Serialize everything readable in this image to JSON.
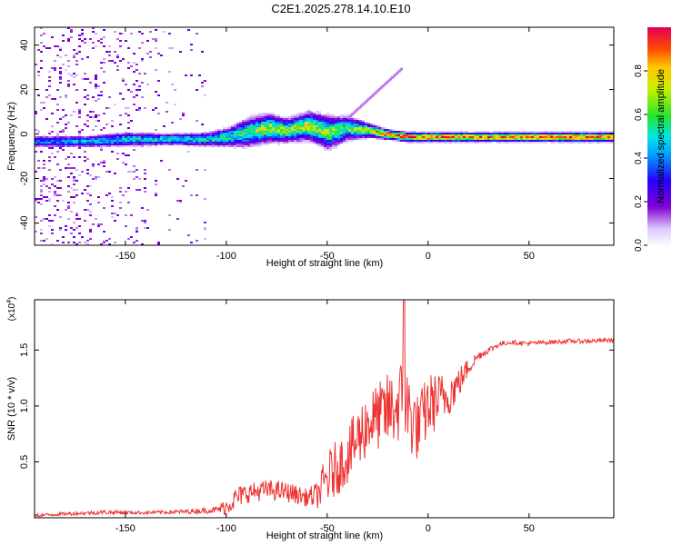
{
  "title": "C2E1.2025.278.14.10.E10",
  "chart_data": [
    {
      "type": "heatmap",
      "xlabel": "Height of straight line (km)",
      "ylabel": "Frequency (Hz)",
      "xlim": [
        -195,
        92
      ],
      "ylim": [
        -50,
        48
      ],
      "xticks": [
        -150,
        -100,
        -50,
        0,
        50
      ],
      "yticks": [
        -40,
        -20,
        0,
        20,
        40
      ],
      "colorbar": {
        "label": "Normalized spectral amplitude",
        "range": [
          0,
          1
        ],
        "ticks": [
          0.0,
          0.2,
          0.4,
          0.6,
          0.8
        ],
        "tick_labels": [
          "0.0",
          "0.2",
          "0.4",
          "0.6",
          "0.8"
        ]
      },
      "ridge": {
        "x": [
          -195,
          -170,
          -150,
          -130,
          -110,
          -100,
          -90,
          -80,
          -70,
          -60,
          -50,
          -40,
          -30,
          -20,
          -10,
          0,
          20,
          50,
          92
        ],
        "center_hz": [
          -3,
          -3,
          -2,
          -2,
          -2,
          -1,
          1,
          3,
          2,
          4,
          1,
          3,
          2,
          0,
          -1,
          -1,
          -1,
          -1,
          -1
        ],
        "half_width_hz": [
          2.5,
          2.5,
          3,
          2.5,
          3,
          4,
          6,
          6,
          5,
          6,
          7,
          5,
          3,
          2,
          2,
          2,
          2,
          2,
          2
        ],
        "peak_amplitude": [
          0.4,
          0.45,
          0.5,
          0.5,
          0.5,
          0.55,
          0.6,
          0.7,
          0.65,
          0.7,
          0.65,
          0.6,
          0.7,
          0.9,
          0.95,
          0.95,
          0.9,
          0.9,
          0.95
        ]
      }
    },
    {
      "type": "line",
      "xlabel": "Height of straight line (km)",
      "ylabel": "SNR (10 * v/v)",
      "scale_label": "(x10",
      "scale_exp": "4",
      "scale_close": ")",
      "xlim": [
        -195,
        92
      ],
      "ylim": [
        0,
        19500
      ],
      "xticks": [
        -150,
        -100,
        -50,
        0,
        50
      ],
      "yticks": [
        5000,
        10000,
        15000
      ],
      "ytick_labels": [
        "0.5",
        "1.0",
        "1.5"
      ],
      "series": [
        {
          "name": "SNR",
          "color": "#ee3333",
          "x": [
            -195,
            -180,
            -160,
            -140,
            -120,
            -105,
            -100,
            -95,
            -90,
            -80,
            -70,
            -60,
            -55,
            -50,
            -45,
            -40,
            -35,
            -30,
            -25,
            -20,
            -15,
            -12,
            -10,
            -5,
            0,
            5,
            10,
            15,
            20,
            25,
            30,
            35,
            40,
            50,
            60,
            70,
            80,
            92
          ],
          "y": [
            200,
            350,
            500,
            450,
            550,
            700,
            1000,
            1800,
            2200,
            2500,
            2300,
            1800,
            2000,
            3500,
            4500,
            5500,
            7000,
            8500,
            9000,
            9500,
            10000,
            11000,
            9500,
            8000,
            10000,
            10500,
            11000,
            12000,
            13500,
            14500,
            15000,
            15500,
            15700,
            15600,
            15700,
            15800,
            15800,
            15900
          ],
          "noise_amp": [
            150,
            150,
            200,
            150,
            200,
            300,
            800,
            1000,
            900,
            900,
            900,
            800,
            1200,
            2500,
            2500,
            2500,
            3000,
            3000,
            3000,
            3500,
            3500,
            4000,
            4000,
            3000,
            3000,
            2500,
            2000,
            1500,
            800,
            400,
            300,
            250,
            200,
            200,
            200,
            200,
            200,
            200
          ],
          "spike": {
            "x": -12,
            "y": 19500
          }
        }
      ]
    }
  ]
}
